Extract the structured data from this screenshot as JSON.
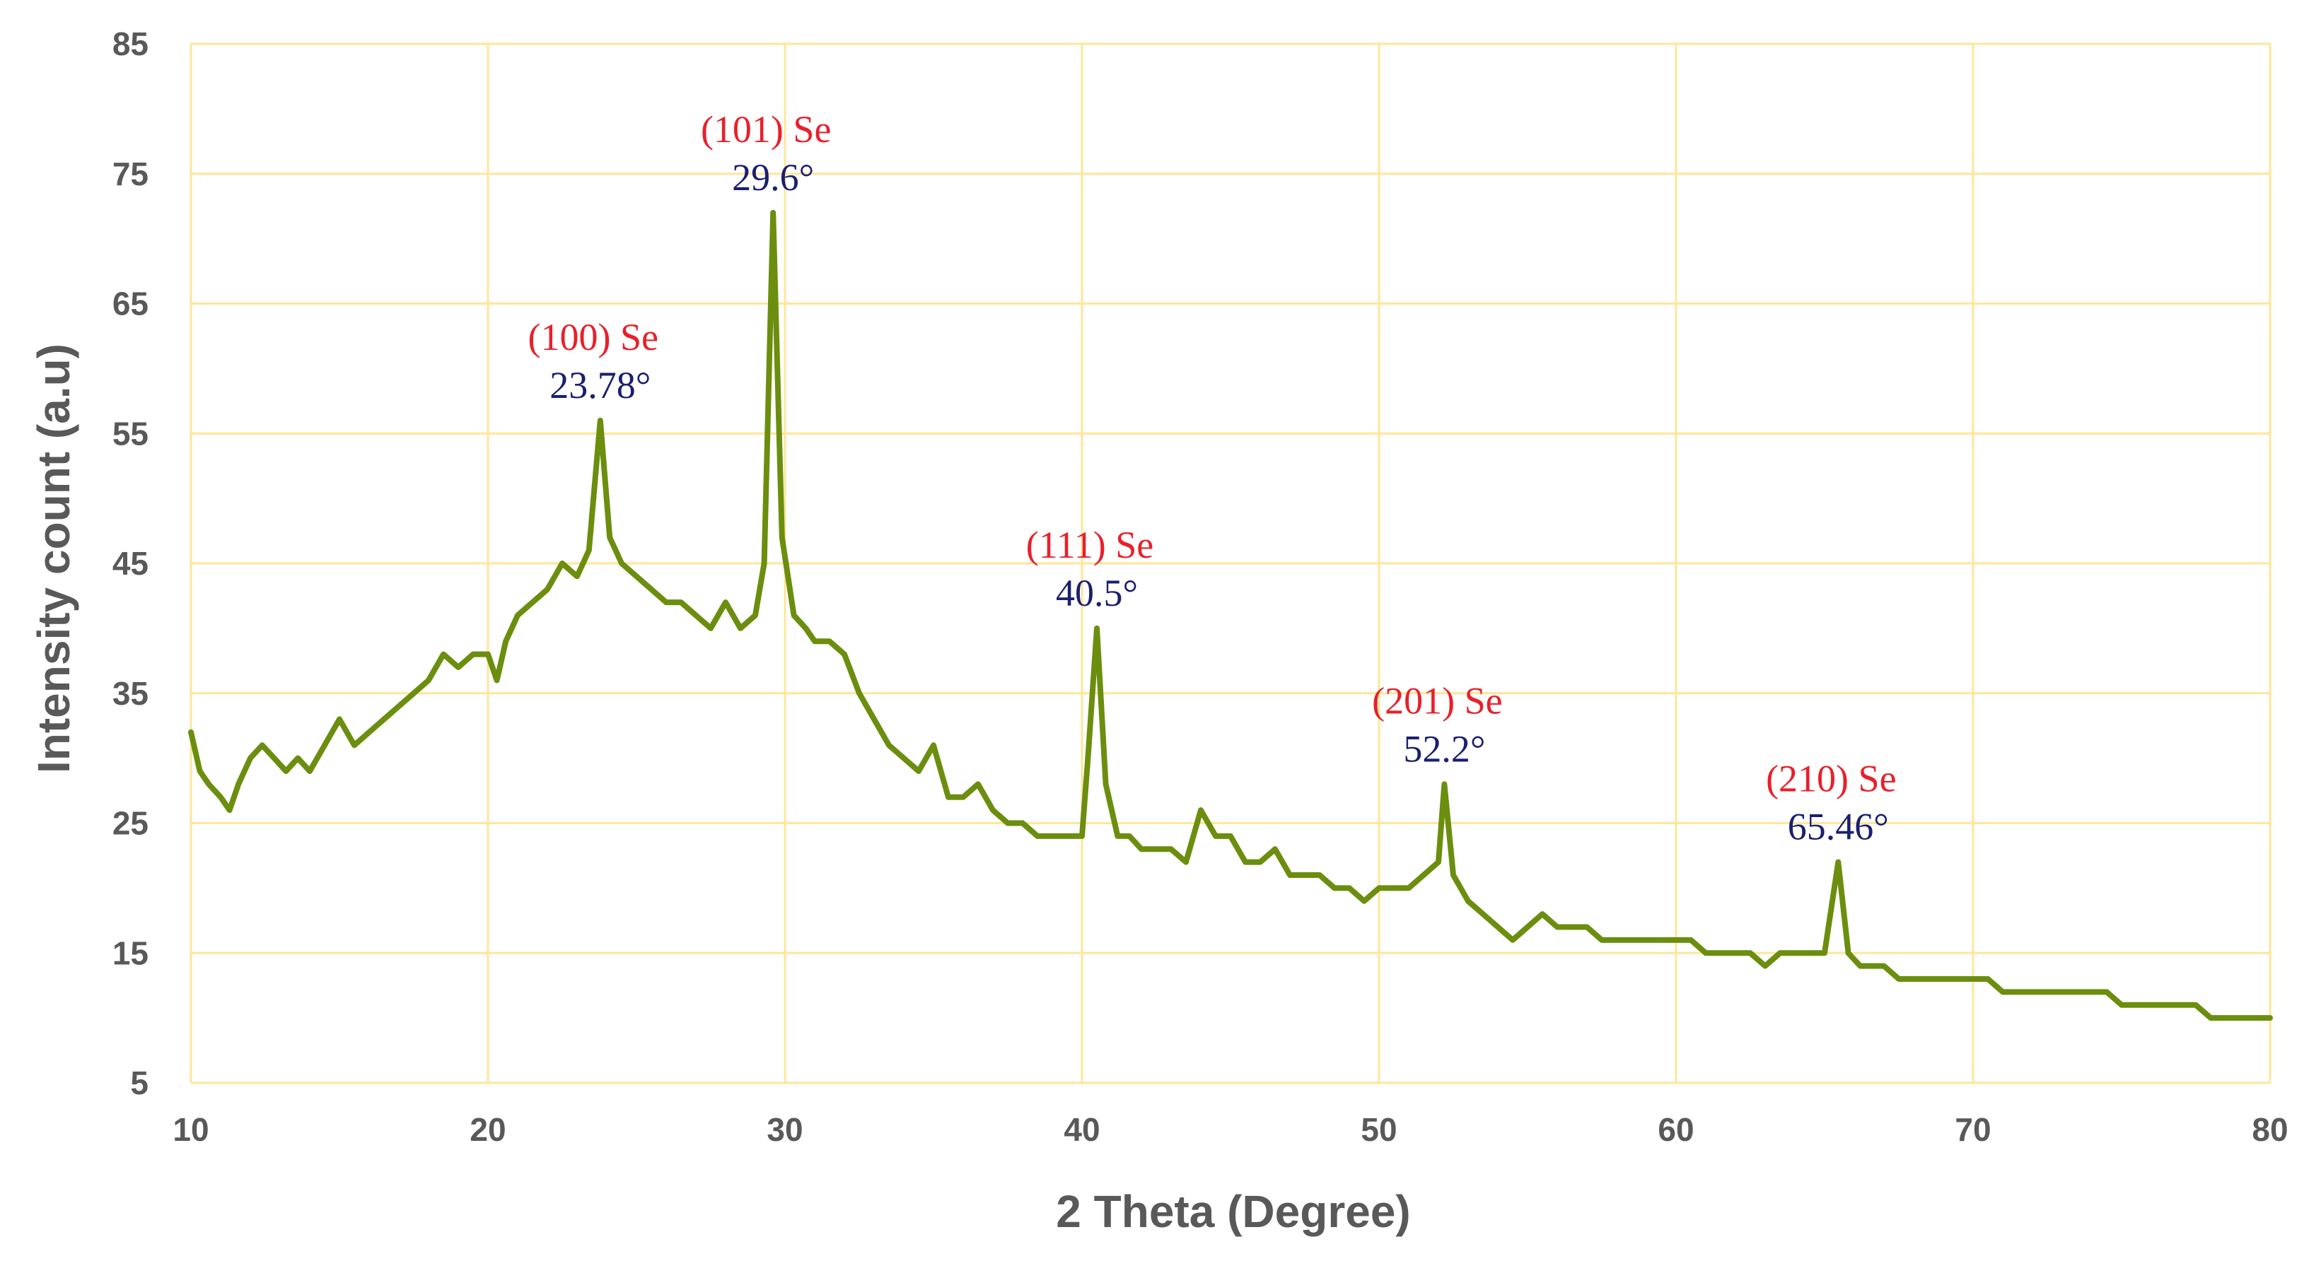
{
  "chart_data": {
    "type": "line",
    "title": "",
    "xlabel": "2 Theta (Degree)",
    "ylabel": "Intensity count (a.u)",
    "xlim": [
      10,
      80
    ],
    "ylim": [
      5,
      85
    ],
    "xticks": [
      "10",
      "20",
      "30",
      "40",
      "50",
      "60",
      "70",
      "80"
    ],
    "yticks": [
      "5",
      "15",
      "25",
      "35",
      "45",
      "55",
      "65",
      "75",
      "85"
    ],
    "grid": true,
    "legend": "none",
    "colors": {
      "line": "#6b8e0e",
      "grid": "#ffe699",
      "hkl": "#e8202a",
      "angle": "#1a1f6e",
      "tick": "#595959"
    },
    "series": [
      {
        "x": [
          10,
          10.3,
          10.6,
          11,
          11.3,
          11.6,
          12,
          12.4,
          12.8,
          13.2,
          13.6,
          14,
          14.5,
          15,
          15.5,
          16,
          16.5,
          17,
          17.5,
          18,
          18.5,
          19,
          19.5,
          20,
          20.3,
          20.6,
          21,
          21.5,
          22,
          22.5,
          23,
          23.4,
          23.78,
          24.1,
          24.5,
          25,
          25.5,
          26,
          26.5,
          27,
          27.5,
          28,
          28.5,
          29,
          29.3,
          29.6,
          29.9,
          30.3,
          30.7,
          31,
          31.5,
          32,
          32.5,
          33,
          33.5,
          34,
          34.5,
          35,
          35.5,
          36,
          36.5,
          37,
          37.5,
          38,
          38.5,
          39,
          39.5,
          40,
          40.2,
          40.5,
          40.8,
          41.2,
          41.6,
          42,
          42.5,
          43,
          43.5,
          44,
          44.5,
          45,
          45.5,
          46,
          46.5,
          47,
          47.5,
          48,
          48.5,
          49,
          49.5,
          50,
          50.5,
          51,
          51.5,
          52,
          52.2,
          52.5,
          53,
          53.5,
          54,
          54.5,
          55,
          55.5,
          56,
          56.5,
          57,
          57.5,
          58,
          58.5,
          59,
          59.5,
          60,
          60.5,
          61,
          61.5,
          62,
          62.5,
          63,
          63.5,
          64,
          64.5,
          65,
          65.46,
          65.8,
          66.2,
          66.6,
          67,
          67.5,
          68,
          68.5,
          69,
          69.5,
          70,
          70.5,
          71,
          71.5,
          72,
          72.5,
          73,
          73.5,
          74,
          74.5,
          75,
          75.5,
          76,
          76.5,
          77,
          77.5,
          78,
          78.5,
          79,
          79.5,
          80
        ],
        "values": [
          32,
          29,
          28,
          27,
          26,
          28,
          30,
          31,
          30,
          29,
          30,
          29,
          31,
          33,
          31,
          32,
          33,
          34,
          35,
          36,
          38,
          37,
          38,
          38,
          36,
          39,
          41,
          42,
          43,
          45,
          44,
          46,
          56,
          47,
          45,
          44,
          43,
          42,
          42,
          41,
          40,
          42,
          40,
          41,
          45,
          72,
          47,
          41,
          40,
          39,
          39,
          38,
          35,
          33,
          31,
          30,
          29,
          31,
          27,
          27,
          28,
          26,
          25,
          25,
          24,
          24,
          24,
          24,
          30,
          40,
          28,
          24,
          24,
          23,
          23,
          23,
          22,
          26,
          24,
          24,
          22,
          22,
          23,
          21,
          21,
          21,
          20,
          20,
          19,
          20,
          20,
          20,
          21,
          22,
          28,
          21,
          19,
          18,
          17,
          16,
          17,
          18,
          17,
          17,
          17,
          16,
          16,
          16,
          16,
          16,
          16,
          16,
          15,
          15,
          15,
          15,
          14,
          15,
          15,
          15,
          15,
          22,
          15,
          14,
          14,
          14,
          13,
          13,
          13,
          13,
          13,
          13,
          13,
          12,
          12,
          12,
          12,
          12,
          12,
          12,
          12,
          11,
          11,
          11,
          11,
          11,
          11,
          10,
          10,
          10,
          10,
          10
        ]
      }
    ],
    "annotations": [
      {
        "x": 23.78,
        "y": 56,
        "hkl": "(100) Se",
        "angle": "23.78°"
      },
      {
        "x": 29.6,
        "y": 72,
        "hkl": "(101) Se",
        "angle": "29.6°"
      },
      {
        "x": 40.5,
        "y": 40,
        "hkl": "(111) Se",
        "angle": "40.5°"
      },
      {
        "x": 52.2,
        "y": 28,
        "hkl": "(201) Se",
        "angle": "52.2°"
      },
      {
        "x": 65.46,
        "y": 22,
        "hkl": "(210) Se",
        "angle": "65.46°"
      }
    ]
  }
}
